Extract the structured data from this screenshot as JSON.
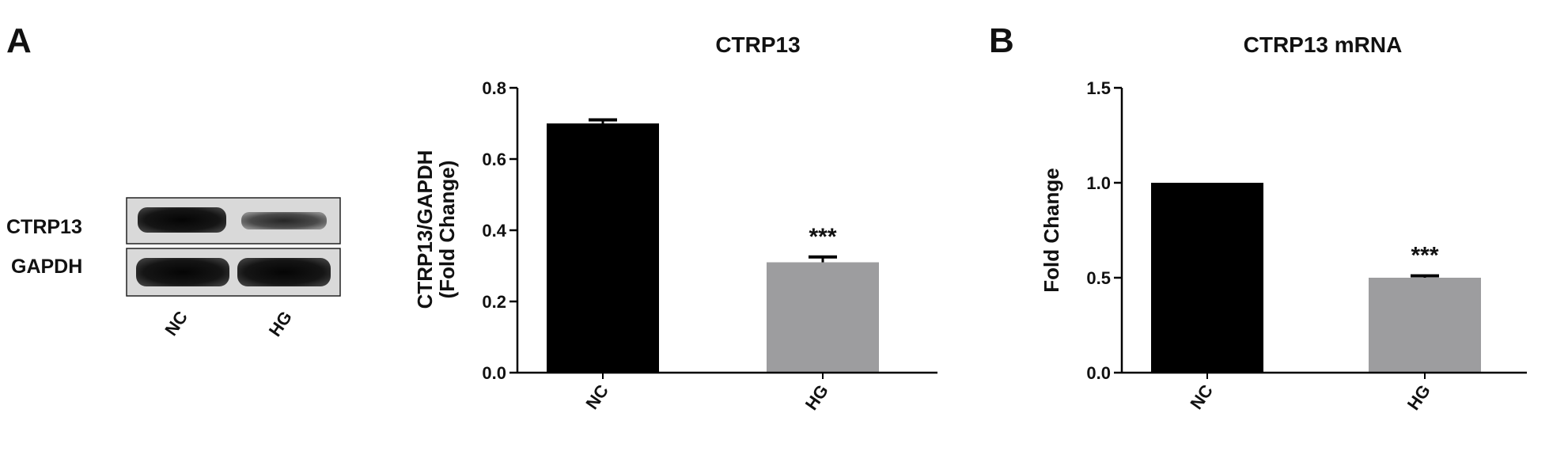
{
  "panels": {
    "a_label": "A",
    "b_label": "B"
  },
  "blot": {
    "rows": [
      "CTRP13",
      "GAPDH"
    ],
    "lanes": [
      "NC",
      "HG"
    ]
  },
  "chart_data": [
    {
      "type": "bar",
      "title": "CTRP13",
      "ylabel_lines": [
        "CTRP13/GAPDH",
        "(Fold Change)"
      ],
      "categories": [
        "NC",
        "HG"
      ],
      "values": [
        0.7,
        0.31
      ],
      "errors": [
        0.01,
        0.015
      ],
      "colors": [
        "#000000",
        "#9d9d9f"
      ],
      "ylim": [
        0,
        0.8
      ],
      "yticks": [
        "0.0",
        "0.2",
        "0.4",
        "0.6",
        "0.8"
      ],
      "annotation": "***",
      "grid": false
    },
    {
      "type": "bar",
      "title": "CTRP13 mRNA",
      "ylabel_lines": [
        "Fold Change"
      ],
      "categories": [
        "NC",
        "HG"
      ],
      "values": [
        1.0,
        0.5
      ],
      "errors": [
        0,
        0.01
      ],
      "colors": [
        "#000000",
        "#9d9d9f"
      ],
      "ylim": [
        0,
        1.5
      ],
      "yticks": [
        "0.0",
        "0.5",
        "1.0",
        "1.5"
      ],
      "annotation": "***",
      "grid": false
    }
  ]
}
